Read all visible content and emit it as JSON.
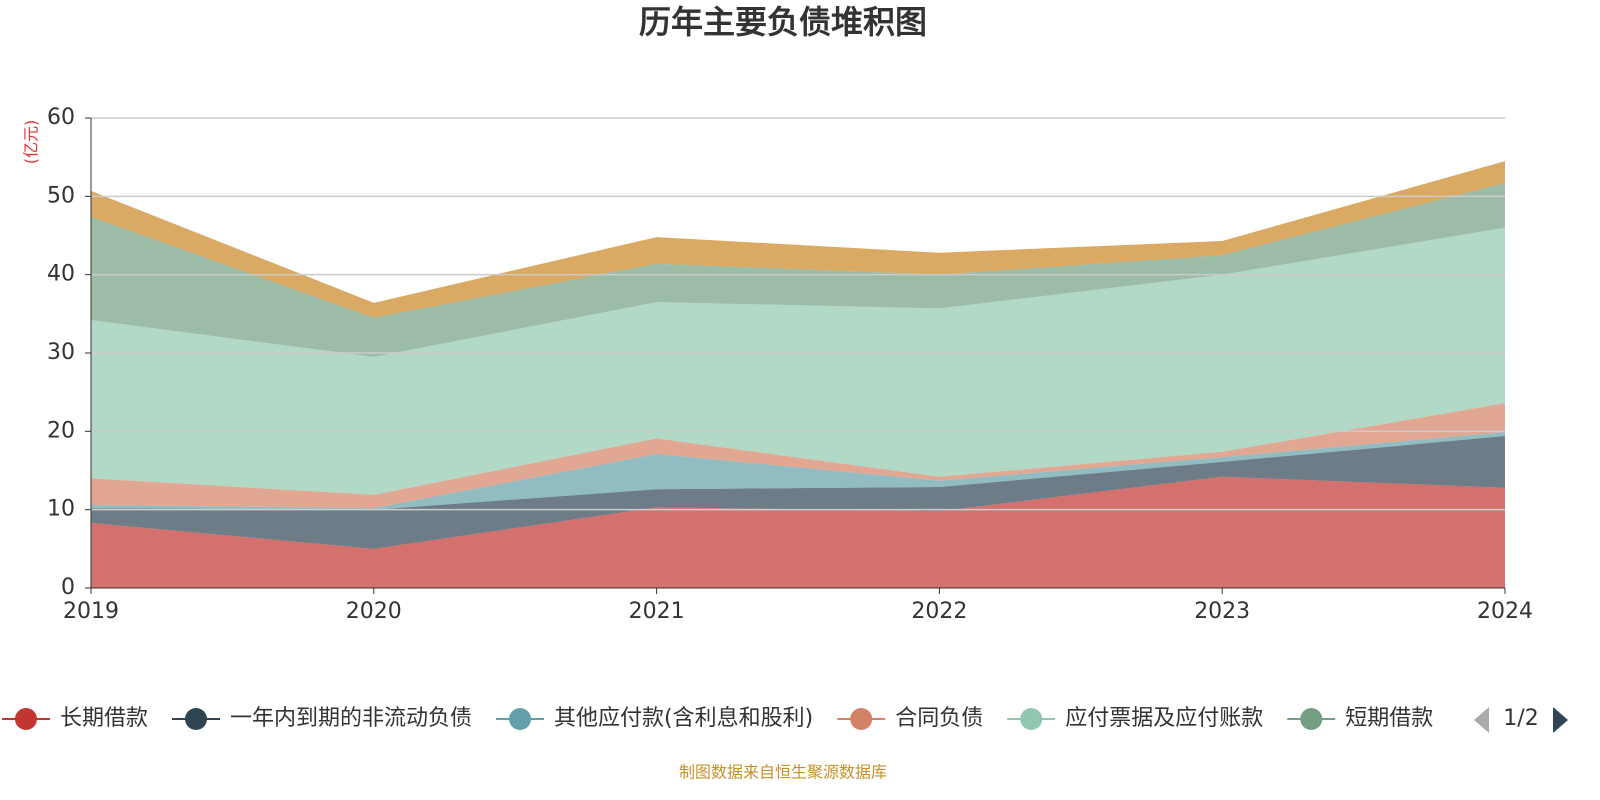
{
  "chart_data": {
    "type": "stacked_area",
    "title": "历年主要负债堆积图",
    "y_unit": "(亿元)",
    "source": "制图数据来自恒生聚源数据库",
    "legend_page": "1/2",
    "categories": [
      "2019",
      "2020",
      "2021",
      "2022",
      "2023",
      "2024"
    ],
    "ylim": [
      0,
      60
    ],
    "yticks": [
      0,
      10,
      20,
      30,
      40,
      50,
      60
    ],
    "grid": true,
    "series": [
      {
        "name": "长期借款",
        "color": "#c23531",
        "values": [
          8.3,
          5.0,
          10.3,
          9.8,
          14.2,
          12.8
        ]
      },
      {
        "name": "一年内到期的非流动负债",
        "color": "#2f4554",
        "values": [
          1.9,
          5.0,
          2.3,
          3.1,
          1.9,
          6.6
        ]
      },
      {
        "name": "其他应付款(含利息和股利)",
        "color": "#61a0a8",
        "values": [
          0.4,
          0.2,
          4.5,
          0.8,
          0.6,
          0.5
        ]
      },
      {
        "name": "合同负债",
        "color": "#d48265",
        "values": [
          3.4,
          1.7,
          2.0,
          0.5,
          0.7,
          3.7
        ]
      },
      {
        "name": "应付票据及应付账款",
        "color": "#91c7ae",
        "values": [
          20.2,
          17.6,
          17.4,
          21.5,
          22.6,
          22.4
        ]
      },
      {
        "name": "短期借款",
        "color": "#749f83",
        "values": [
          13.2,
          5.0,
          4.9,
          4.3,
          2.5,
          5.7
        ]
      },
      {
        "color": "#ca8622",
        "values": [
          3.3,
          1.9,
          3.4,
          2.8,
          1.8,
          2.8
        ]
      }
    ]
  }
}
